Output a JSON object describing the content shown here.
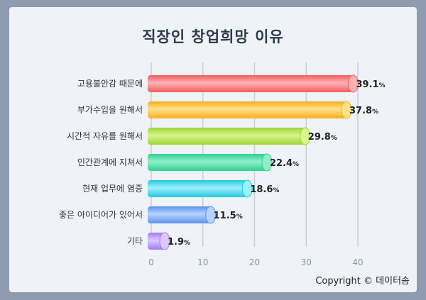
{
  "title": "직장인 창업희망 이유",
  "copyright": "Copyright © 데이터솜",
  "chart_data": {
    "type": "bar",
    "orientation": "horizontal",
    "title": "직장인 창업희망 이유",
    "categories": [
      "고용불안감 때문에",
      "부가수입을 원해서",
      "시간적 자유를 원해서",
      "인간관계에 지쳐서",
      "현재 업무에 염증",
      "좋은 아이디어가 있어서",
      "기타"
    ],
    "values": [
      39.1,
      37.8,
      29.8,
      22.4,
      18.6,
      11.5,
      1.9
    ],
    "value_suffix": "%",
    "xlim": [
      0,
      40
    ],
    "xticks": [
      0,
      10,
      20,
      30,
      40
    ],
    "grid": true,
    "colors": [
      "#f25b5e",
      "#f9ad1f",
      "#9bd535",
      "#2fcf90",
      "#24c9e0",
      "#5c92f0",
      "#a47af2"
    ],
    "highlight_colors": [
      "#ffb3b5",
      "#ffe18a",
      "#d8f58e",
      "#8ff0c8",
      "#9cf0fb",
      "#b8d2ff",
      "#ddc8ff"
    ]
  }
}
